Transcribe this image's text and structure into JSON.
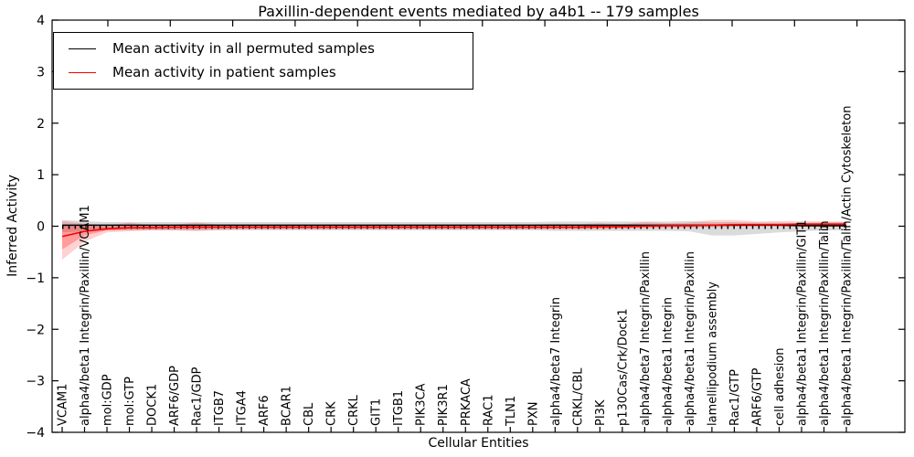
{
  "title": "Paxillin-dependent events mediated by a4b1 -- 179 samples",
  "axes": {
    "xlabel": "Cellular Entities",
    "ylabel": "Inferred Activity",
    "ytick_labels": [
      "4",
      "3",
      "2",
      "1",
      "0",
      "−1",
      "−2",
      "−3",
      "−4"
    ],
    "ytick_values": [
      4,
      3,
      2,
      1,
      0,
      -1,
      -2,
      -3,
      -4
    ]
  },
  "legend": {
    "items": [
      {
        "label": "Mean activity in all permuted samples",
        "color": "#000000"
      },
      {
        "label": "Mean activity in patient samples",
        "color": "#ff0000"
      }
    ]
  },
  "chart_data": {
    "type": "line",
    "title": "Paxillin-dependent events mediated by a4b1 -- 179 samples",
    "xlabel": "Cellular Entities",
    "ylabel": "Inferred Activity",
    "ylim": [
      -4,
      4
    ],
    "grid": false,
    "legend_position": "upper left",
    "zero_reference_line": true,
    "categories": [
      "VCAM1",
      "alpha4/beta1 Integrin/Paxillin/VCAM1",
      "mol:GDP",
      "mol:GTP",
      "DOCK1",
      "ARF6/GDP",
      "Rac1/GDP",
      "ITGB7",
      "ITGA4",
      "ARF6",
      "BCAR1",
      "CBL",
      "CRK",
      "CRKL",
      "GIT1",
      "ITGB1",
      "PIK3CA",
      "PIK3R1",
      "PRKACA",
      "RAC1",
      "TLN1",
      "PXN",
      "alpha4/beta7 Integrin",
      "CRKL/CBL",
      "PI3K",
      "p130Cas/Crk/Dock1",
      "alpha4/beta7 Integrin/Paxillin",
      "alpha4/beta1 Integrin",
      "alpha4/beta1 Integrin/Paxillin",
      "lamellipodium assembly",
      "Rac1/GTP",
      "ARF6/GTP",
      "cell adhesion",
      "alpha4/beta1 Integrin/Paxillin/GIT1",
      "alpha4/beta1 Integrin/Paxillin/Talin",
      "alpha4/beta1 Integrin/Paxillin/Talin/Actin Cytoskeleton"
    ],
    "series": [
      {
        "name": "Mean activity in all permuted samples",
        "color": "#000000",
        "values": [
          0.02,
          0.02,
          0.02,
          0.02,
          0.02,
          0.02,
          0.02,
          0.02,
          0.02,
          0.02,
          0.02,
          0.02,
          0.02,
          0.02,
          0.02,
          0.02,
          0.02,
          0.02,
          0.02,
          0.02,
          0.02,
          0.02,
          0.02,
          0.02,
          0.02,
          0.02,
          0.02,
          0.02,
          0.02,
          0.02,
          0.02,
          0.02,
          0.02,
          0.01,
          0.01,
          0.01
        ]
      },
      {
        "name": "Mean activity in patient samples",
        "color": "#ff0000",
        "values": [
          -0.2,
          -0.1,
          -0.05,
          -0.03,
          -0.03,
          -0.02,
          -0.02,
          -0.02,
          -0.02,
          -0.02,
          -0.02,
          -0.02,
          -0.02,
          -0.02,
          -0.02,
          -0.02,
          -0.02,
          -0.02,
          -0.02,
          -0.02,
          -0.02,
          -0.02,
          -0.02,
          -0.02,
          -0.01,
          -0.01,
          0.0,
          0.01,
          0.01,
          0.02,
          0.03,
          0.03,
          0.03,
          0.04,
          0.04,
          0.04
        ]
      }
    ],
    "bands": [
      {
        "name": "permuted-spread",
        "color": "#000000",
        "opacity": 0.14,
        "upper": [
          0.12,
          0.1,
          0.08,
          0.08,
          0.08,
          0.08,
          0.08,
          0.08,
          0.08,
          0.08,
          0.08,
          0.08,
          0.08,
          0.08,
          0.08,
          0.08,
          0.08,
          0.08,
          0.08,
          0.08,
          0.08,
          0.08,
          0.09,
          0.09,
          0.09,
          0.09,
          0.09,
          0.09,
          0.1,
          0.08,
          0.08,
          0.07,
          0.07,
          0.06,
          0.08,
          0.08
        ],
        "lower": [
          -0.12,
          -0.1,
          -0.08,
          -0.08,
          -0.08,
          -0.08,
          -0.08,
          -0.08,
          -0.08,
          -0.08,
          -0.08,
          -0.08,
          -0.08,
          -0.08,
          -0.08,
          -0.08,
          -0.08,
          -0.08,
          -0.08,
          -0.08,
          -0.08,
          -0.08,
          -0.09,
          -0.09,
          -0.09,
          -0.09,
          -0.09,
          -0.09,
          -0.1,
          -0.18,
          -0.18,
          -0.15,
          -0.12,
          -0.1,
          -0.08,
          -0.08
        ]
      },
      {
        "name": "patient-spread-outer",
        "color": "#ff0000",
        "opacity": 0.18,
        "upper": [
          0.1,
          0.05,
          0.02,
          0.07,
          0.02,
          0.03,
          0.07,
          0.03,
          0.03,
          0.03,
          0.03,
          0.03,
          0.03,
          0.03,
          0.03,
          0.03,
          0.03,
          0.03,
          0.03,
          0.03,
          0.03,
          0.03,
          0.05,
          0.04,
          0.06,
          0.04,
          0.08,
          0.06,
          0.07,
          0.12,
          0.12,
          0.09,
          0.1,
          0.1,
          0.09,
          0.09
        ],
        "lower": [
          -0.65,
          -0.3,
          -0.12,
          -0.1,
          -0.08,
          -0.08,
          -0.1,
          -0.07,
          -0.06,
          -0.06,
          -0.06,
          -0.06,
          -0.06,
          -0.06,
          -0.06,
          -0.06,
          -0.06,
          -0.06,
          -0.06,
          -0.06,
          -0.06,
          -0.06,
          -0.06,
          -0.06,
          -0.06,
          -0.05,
          -0.04,
          -0.03,
          -0.03,
          -0.02,
          -0.01,
          0.0,
          0.0,
          0.0,
          0.01,
          0.01
        ]
      },
      {
        "name": "patient-spread-inner",
        "color": "#ff0000",
        "opacity": 0.25,
        "upper": [
          0.02,
          0.0,
          -0.01,
          0.0,
          0.0,
          0.0,
          0.01,
          0.0,
          0.0,
          0.0,
          0.0,
          0.0,
          0.0,
          0.0,
          0.0,
          0.0,
          0.0,
          0.0,
          0.0,
          0.0,
          0.0,
          0.0,
          0.0,
          0.0,
          0.01,
          0.01,
          0.02,
          0.03,
          0.03,
          0.04,
          0.05,
          0.05,
          0.05,
          0.06,
          0.06,
          0.06
        ],
        "lower": [
          -0.45,
          -0.18,
          -0.08,
          -0.06,
          -0.05,
          -0.05,
          -0.05,
          -0.04,
          -0.04,
          -0.04,
          -0.04,
          -0.04,
          -0.04,
          -0.04,
          -0.04,
          -0.04,
          -0.04,
          -0.04,
          -0.04,
          -0.04,
          -0.04,
          -0.04,
          -0.04,
          -0.04,
          -0.03,
          -0.03,
          -0.02,
          -0.01,
          -0.01,
          0.0,
          0.01,
          0.01,
          0.01,
          0.02,
          0.02,
          0.02
        ]
      }
    ]
  }
}
